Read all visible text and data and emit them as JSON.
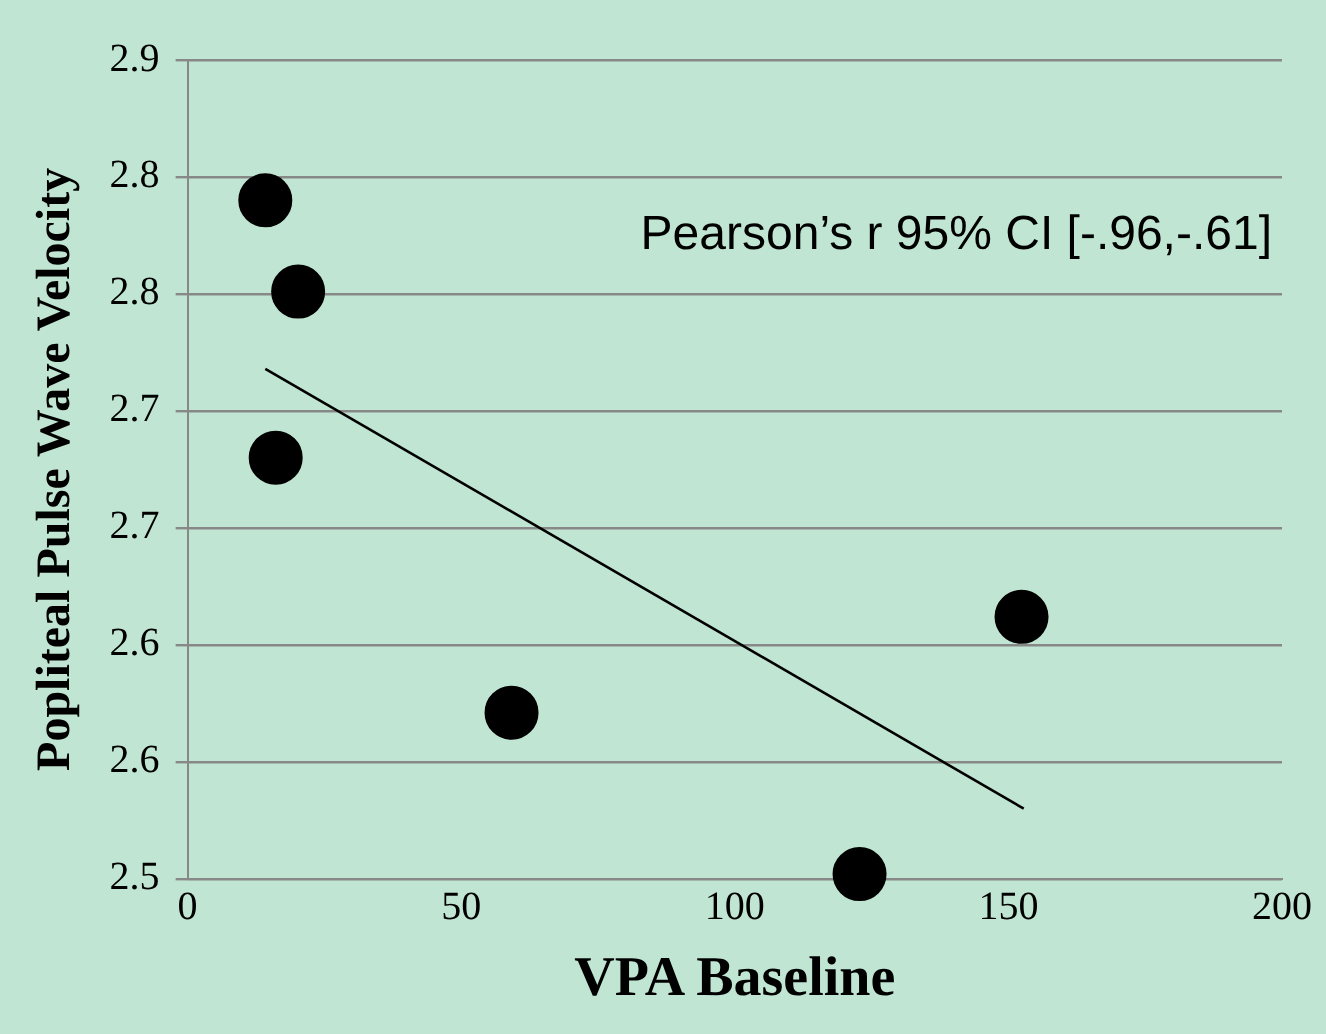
{
  "chart_data": {
    "type": "scatter",
    "xlabel": "VPA Baseline",
    "ylabel": "Popliteal Pulse Wave Velocity",
    "annotations": [
      "Pearson’s r 95% CI [-.96,-.61]"
    ],
    "xlim": [
      0,
      200
    ],
    "xticks": [
      0,
      50,
      100,
      150,
      200
    ],
    "ylim": [
      2.5,
      2.85
    ],
    "yticks": [
      2.5,
      {
        "value": 2.55,
        "label": "2.6"
      },
      2.6,
      {
        "value": 2.65,
        "label": "2.7"
      },
      2.7,
      {
        "value": 2.75,
        "label": "2.8"
      },
      2.8,
      {
        "value": 2.85,
        "label": "2.9"
      }
    ],
    "grid": "y",
    "legend": false,
    "series": [
      {
        "type": "scatter",
        "marker": "circle",
        "color": "#000000",
        "x": [
          14.2,
          20.2,
          16.1,
          59.2,
          122.8,
          152.4
        ],
        "values": [
          2.79,
          2.751,
          2.68,
          2.571,
          2.502,
          2.612
        ]
      },
      {
        "type": "line",
        "marker": "none",
        "color": "#000000",
        "x": [
          14.2,
          152.8
        ],
        "values": [
          2.718,
          2.53
        ]
      }
    ]
  }
}
